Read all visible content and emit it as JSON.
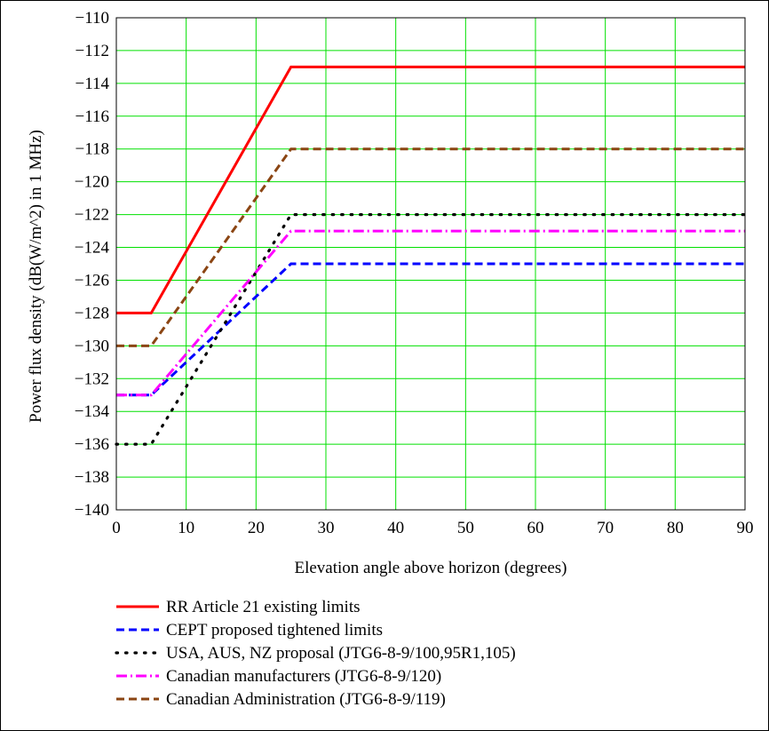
{
  "chart_data": {
    "type": "line",
    "title": "",
    "xlabel": "Elevation angle above horizon (degrees)",
    "ylabel": "Power flux density (dB(W/m^2) in 1 MHz)",
    "xlim": [
      0,
      90
    ],
    "ylim": [
      -140,
      -110
    ],
    "x_ticks": [
      0,
      10,
      20,
      30,
      40,
      50,
      60,
      70,
      80,
      90
    ],
    "y_ticks": [
      -110,
      -112,
      -114,
      -116,
      -118,
      -120,
      -122,
      -124,
      -126,
      -128,
      -130,
      -132,
      -134,
      -136,
      -138,
      -140
    ],
    "x_tick_labels": [
      "0",
      "10",
      "20",
      "30",
      "40",
      "50",
      "60",
      "70",
      "80",
      "90"
    ],
    "y_tick_labels": [
      "−110",
      "−112",
      "−114",
      "−116",
      "−118",
      "−120",
      "−122",
      "−124",
      "−126",
      "−128",
      "−130",
      "−132",
      "−134",
      "−136",
      "−138",
      "−140"
    ],
    "grid": true,
    "grid_color": "#00e000",
    "legend_position": "below",
    "series": [
      {
        "name": "RR Article 21 existing limits",
        "color": "#ff0000",
        "dash": "solid",
        "x": [
          0,
          5,
          25,
          90
        ],
        "y": [
          -128,
          -128,
          -113,
          -113
        ]
      },
      {
        "name": "CEPT proposed tightened limits",
        "color": "#0000ff",
        "dash": "dashed",
        "x": [
          0,
          5,
          25,
          90
        ],
        "y": [
          -133,
          -133,
          -125,
          -125
        ]
      },
      {
        "name": "USA, AUS, NZ proposal (JTG6-8-9/100,95R1,105)",
        "color": "#000000",
        "dash": "dotted",
        "x": [
          0,
          5,
          25,
          90
        ],
        "y": [
          -136,
          -136,
          -122,
          -122
        ]
      },
      {
        "name": "Canadian manufacturers (JTG6-8-9/120)",
        "color": "#ff00ff",
        "dash": "dashdot",
        "x": [
          0,
          5,
          25,
          90
        ],
        "y": [
          -133,
          -133,
          -123,
          -123
        ]
      },
      {
        "name": "Canadian Administration (JTG6-8-9/119)",
        "color": "#8b4513",
        "dash": "dashed",
        "x": [
          0,
          5,
          25,
          90
        ],
        "y": [
          -130,
          -130,
          -118,
          -118
        ]
      }
    ]
  }
}
